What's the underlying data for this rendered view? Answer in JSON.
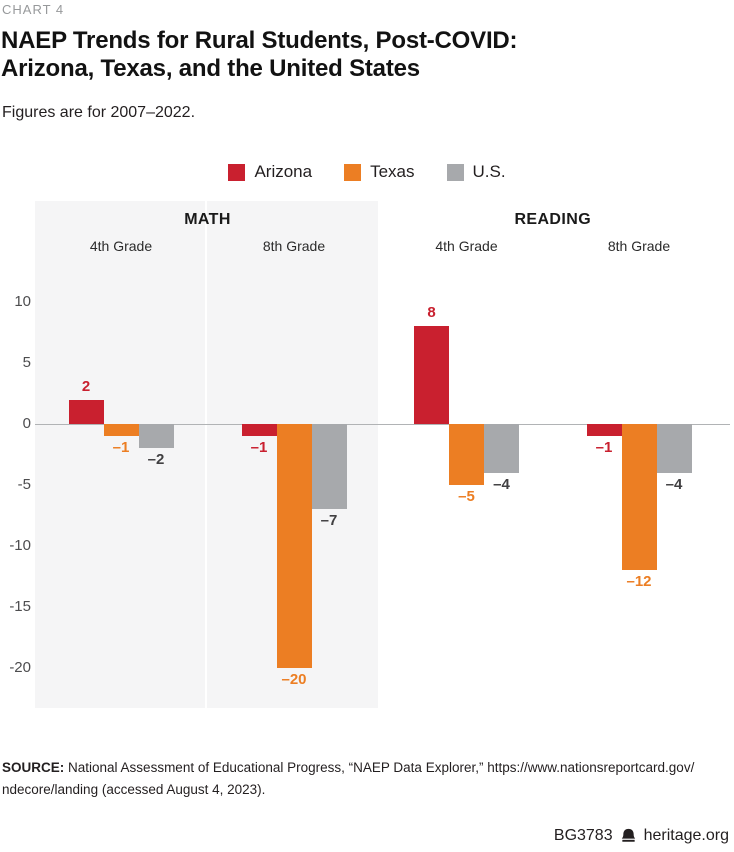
{
  "page": {
    "kicker": "CHART 4",
    "title_line1": "NAEP Trends for Rural Students, Post-COVID:",
    "title_line2": "Arizona, Texas, and the United States",
    "subtitle": "Figures are for 2007–2022."
  },
  "legend": [
    {
      "label": "Arizona",
      "color": "#c9202f"
    },
    {
      "label": "Texas",
      "color": "#ec7e23"
    },
    {
      "label": "U.S.",
      "color": "#a7a9ac"
    }
  ],
  "colors": {
    "arizona_red": "#c9202f",
    "texas_orange": "#ec7e23",
    "us_gray": "#a7a9ac",
    "us_value_label": "#414042",
    "panel_background": "#f5f5f6",
    "zero_line": "#b1b3b5"
  },
  "chart_data": {
    "type": "bar",
    "title": "NAEP Trends for Rural Students, Post-COVID: Arizona, Texas, and the United States",
    "subtitle": "Figures are for 2007–2022.",
    "xlabel": "",
    "ylabel": "",
    "yticks": [
      10,
      5,
      0,
      -5,
      -10,
      -15,
      -20
    ],
    "ylim": [
      -22,
      12
    ],
    "grid": false,
    "legend_position": "top",
    "series_names": [
      "Arizona",
      "Texas",
      "U.S."
    ],
    "series_colors": [
      "#c9202f",
      "#ec7e23",
      "#a7a9ac"
    ],
    "value_label_colors": [
      "#c9202f",
      "#ec7e23",
      "#414042"
    ],
    "categories": [
      "MATH 4th Grade",
      "MATH 8th Grade",
      "READING 4th Grade",
      "READING 8th Grade"
    ],
    "series": [
      {
        "name": "Arizona",
        "values": [
          2,
          -1,
          8,
          -1
        ]
      },
      {
        "name": "Texas",
        "values": [
          -1,
          -20,
          -5,
          -12
        ]
      },
      {
        "name": "U.S.",
        "values": [
          -2,
          -7,
          -4,
          -4
        ]
      }
    ],
    "sections": [
      {
        "label": "MATH",
        "shaded": true,
        "groups": [
          {
            "label": "4th Grade",
            "values": [
              2,
              -1,
              -2
            ],
            "value_labels": [
              "2",
              "–1",
              "–2"
            ]
          },
          {
            "label": "8th Grade",
            "values": [
              -1,
              -20,
              -7
            ],
            "value_labels": [
              "–1",
              "–20",
              "–7"
            ]
          }
        ]
      },
      {
        "label": "READING",
        "shaded": false,
        "groups": [
          {
            "label": "4th Grade",
            "values": [
              8,
              -5,
              -4
            ],
            "value_labels": [
              "8",
              "–5",
              "–4"
            ]
          },
          {
            "label": "8th Grade",
            "values": [
              -1,
              -12,
              -4
            ],
            "value_labels": [
              "–1",
              "–12",
              "–4"
            ]
          }
        ]
      }
    ]
  },
  "source": {
    "label": "SOURCE:",
    "line1_rest": " National Assessment of Educational Progress, “NAEP Data Explorer,” https://www.nationsreportcard.gov/",
    "line2": "ndecore/landing (accessed August 4, 2023)."
  },
  "footer": {
    "report_id": "BG3783",
    "site": "heritage.org",
    "icon": "liberty-bell-icon"
  }
}
